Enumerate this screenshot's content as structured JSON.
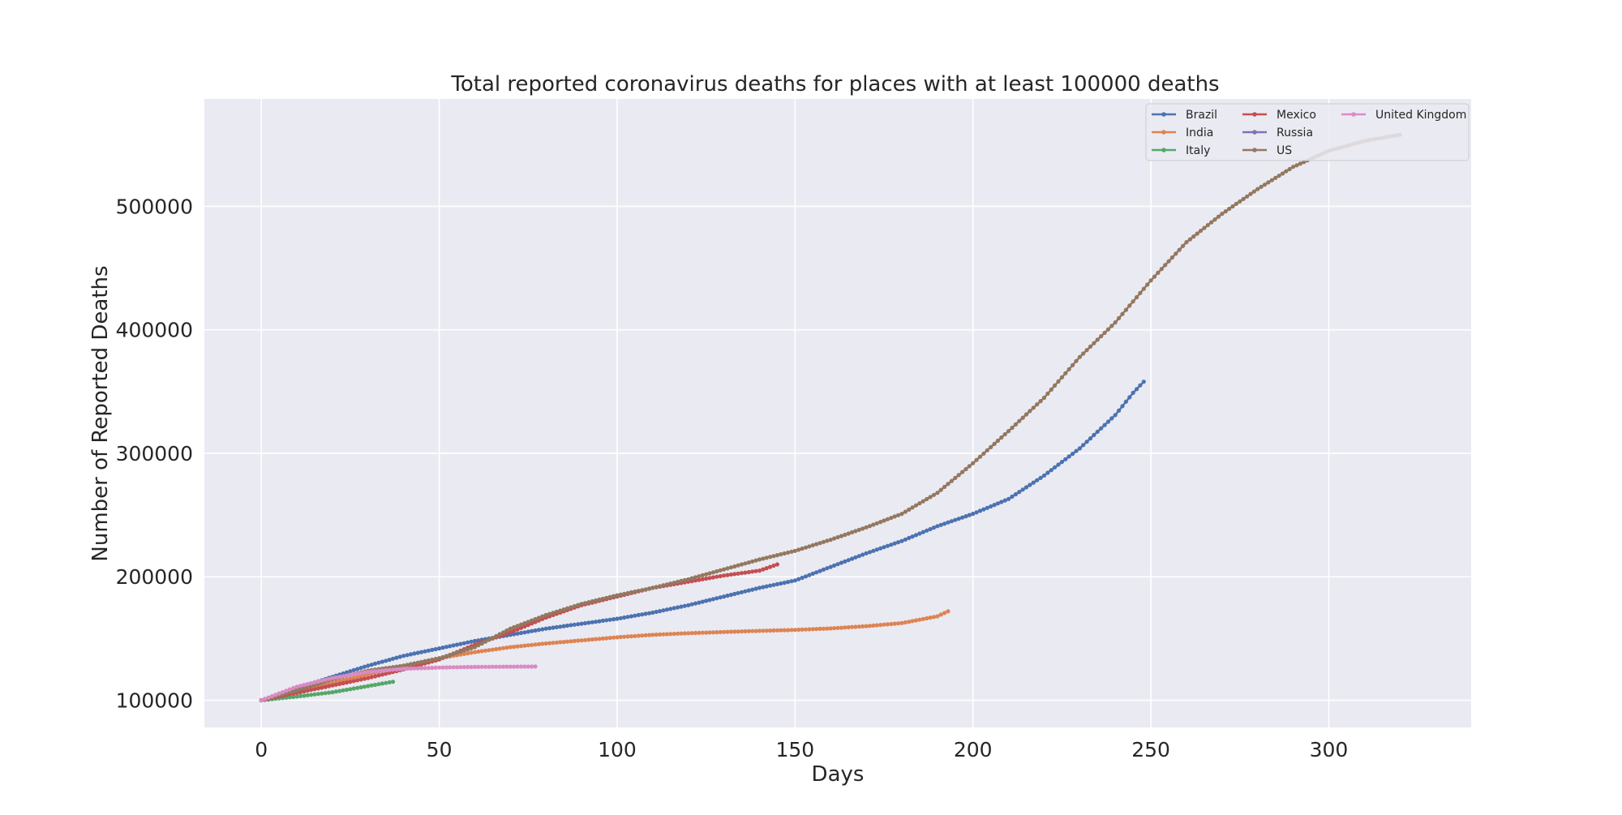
{
  "chart_data": {
    "type": "line",
    "title": "Total reported coronavirus deaths for places with at least 100000 deaths",
    "xlabel": "Days",
    "ylabel": "Number of Reported Deaths",
    "xlim": [
      -16,
      340
    ],
    "ylim": [
      78000,
      587000
    ],
    "xticks": [
      0,
      50,
      100,
      150,
      200,
      250,
      300
    ],
    "yticks": [
      100000,
      200000,
      300000,
      400000,
      500000
    ],
    "xtick_labels": [
      "0",
      "50",
      "100",
      "150",
      "200",
      "250",
      "300"
    ],
    "ytick_labels": [
      "100000",
      "200000",
      "300000",
      "400000",
      "500000"
    ],
    "grid": true,
    "legend": {
      "placement": "top-right",
      "columns": 3
    },
    "series": [
      {
        "name": "Brazil",
        "color": "#4c72b0",
        "points": [
          [
            0,
            100000
          ],
          [
            10,
            110000
          ],
          [
            20,
            119000
          ],
          [
            30,
            128000
          ],
          [
            40,
            136000
          ],
          [
            50,
            142000
          ],
          [
            60,
            148000
          ],
          [
            70,
            153000
          ],
          [
            80,
            158000
          ],
          [
            90,
            162000
          ],
          [
            100,
            166000
          ],
          [
            110,
            171000
          ],
          [
            120,
            177000
          ],
          [
            130,
            184000
          ],
          [
            140,
            191000
          ],
          [
            150,
            197000
          ],
          [
            160,
            208000
          ],
          [
            170,
            219000
          ],
          [
            180,
            229000
          ],
          [
            190,
            241000
          ],
          [
            200,
            251000
          ],
          [
            210,
            263000
          ],
          [
            220,
            282000
          ],
          [
            230,
            304000
          ],
          [
            240,
            331000
          ],
          [
            245,
            349000
          ],
          [
            248,
            358000
          ]
        ]
      },
      {
        "name": "India",
        "color": "#dd8452",
        "points": [
          [
            0,
            100000
          ],
          [
            10,
            107000
          ],
          [
            20,
            114000
          ],
          [
            30,
            121000
          ],
          [
            40,
            128000
          ],
          [
            50,
            134000
          ],
          [
            60,
            139000
          ],
          [
            70,
            143000
          ],
          [
            80,
            146000
          ],
          [
            90,
            148500
          ],
          [
            100,
            151000
          ],
          [
            110,
            153000
          ],
          [
            120,
            154300
          ],
          [
            130,
            155300
          ],
          [
            140,
            156200
          ],
          [
            150,
            157000
          ],
          [
            160,
            158200
          ],
          [
            170,
            160000
          ],
          [
            180,
            162500
          ],
          [
            190,
            168000
          ],
          [
            193,
            172000
          ]
        ]
      },
      {
        "name": "Italy",
        "color": "#55a868",
        "points": [
          [
            0,
            100000
          ],
          [
            10,
            103000
          ],
          [
            20,
            106500
          ],
          [
            30,
            111500
          ],
          [
            37,
            115000
          ]
        ]
      },
      {
        "name": "Mexico",
        "color": "#c44e52",
        "points": [
          [
            0,
            100000
          ],
          [
            10,
            106000
          ],
          [
            20,
            112000
          ],
          [
            30,
            118000
          ],
          [
            40,
            125000
          ],
          [
            50,
            133000
          ],
          [
            60,
            145000
          ],
          [
            70,
            155000
          ],
          [
            80,
            167000
          ],
          [
            90,
            177000
          ],
          [
            100,
            184000
          ],
          [
            110,
            191000
          ],
          [
            120,
            196000
          ],
          [
            130,
            201000
          ],
          [
            140,
            205000
          ],
          [
            145,
            210000
          ]
        ]
      },
      {
        "name": "Russia",
        "color": "#8172b3",
        "points": []
      },
      {
        "name": "US",
        "color": "#937860",
        "points": [
          [
            0,
            100000
          ],
          [
            10,
            108000
          ],
          [
            20,
            117000
          ],
          [
            30,
            124000
          ],
          [
            40,
            128000
          ],
          [
            50,
            134000
          ],
          [
            60,
            143000
          ],
          [
            70,
            158000
          ],
          [
            80,
            169000
          ],
          [
            90,
            178000
          ],
          [
            100,
            185000
          ],
          [
            110,
            191000
          ],
          [
            120,
            198000
          ],
          [
            130,
            206000
          ],
          [
            140,
            214000
          ],
          [
            150,
            221000
          ],
          [
            160,
            230000
          ],
          [
            170,
            240000
          ],
          [
            180,
            251000
          ],
          [
            190,
            268000
          ],
          [
            200,
            292000
          ],
          [
            210,
            318000
          ],
          [
            220,
            345000
          ],
          [
            230,
            378000
          ],
          [
            240,
            406000
          ],
          [
            250,
            440000
          ],
          [
            260,
            471000
          ],
          [
            270,
            494000
          ],
          [
            280,
            514000
          ],
          [
            290,
            532000
          ],
          [
            300,
            545000
          ],
          [
            310,
            553000
          ],
          [
            320,
            558000
          ]
        ]
      },
      {
        "name": "United Kingdom",
        "color": "#da8bc3",
        "points": [
          [
            0,
            100000
          ],
          [
            10,
            111000
          ],
          [
            20,
            118000
          ],
          [
            30,
            123000
          ],
          [
            40,
            125500
          ],
          [
            50,
            126500
          ],
          [
            60,
            127000
          ],
          [
            70,
            127200
          ],
          [
            77,
            127300
          ]
        ]
      }
    ]
  }
}
